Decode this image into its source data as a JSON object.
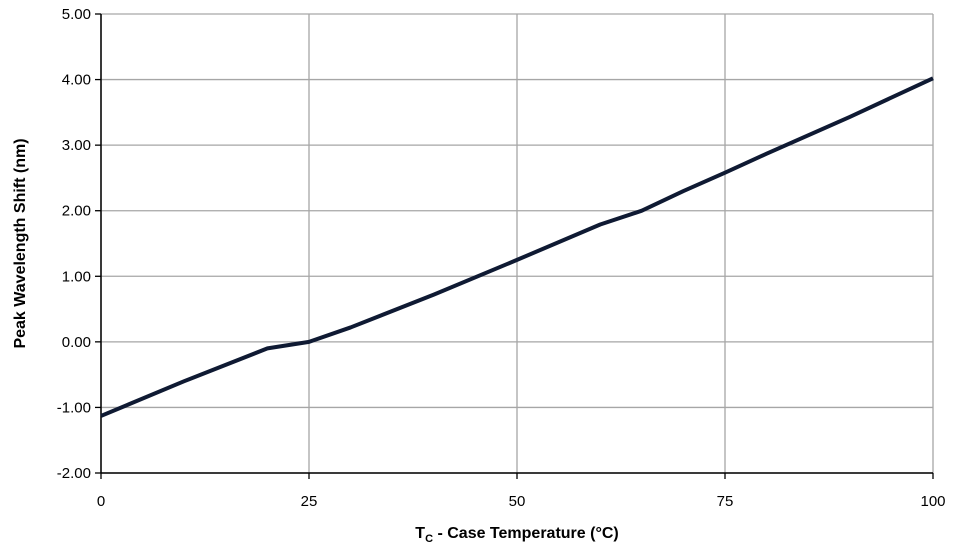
{
  "chart_data": {
    "type": "line",
    "title": "",
    "xlabel": {
      "prefix": "T",
      "subscript": "C",
      "suffix": " - Case Temperature (°C)"
    },
    "ylabel": "Peak Wavelength Shift (nm)",
    "xlim": [
      0,
      100
    ],
    "ylim": [
      -2.0,
      5.0
    ],
    "x_ticks": [
      0,
      25,
      50,
      75,
      100
    ],
    "x_tick_labels": [
      "0",
      "25",
      "50",
      "75",
      "100"
    ],
    "y_ticks": [
      -2.0,
      -1.0,
      0.0,
      1.0,
      2.0,
      3.0,
      4.0,
      5.0
    ],
    "y_tick_labels": [
      "-2.00",
      "-1.00",
      "0.00",
      "1.00",
      "2.00",
      "3.00",
      "4.00",
      "5.00"
    ],
    "grid": true,
    "legend": "none",
    "colors": {
      "line": "#0f1a33",
      "grid": "#a6a6a6",
      "axis": "#000000"
    },
    "series": [
      {
        "x": [
          0,
          10,
          20,
          25,
          30,
          40,
          50,
          60,
          65,
          70,
          75,
          80,
          90,
          100
        ],
        "y": [
          -1.13,
          -0.6,
          -0.1,
          0.0,
          0.22,
          0.72,
          1.25,
          1.79,
          2.0,
          2.3,
          2.58,
          2.87,
          3.43,
          4.02
        ]
      }
    ]
  }
}
